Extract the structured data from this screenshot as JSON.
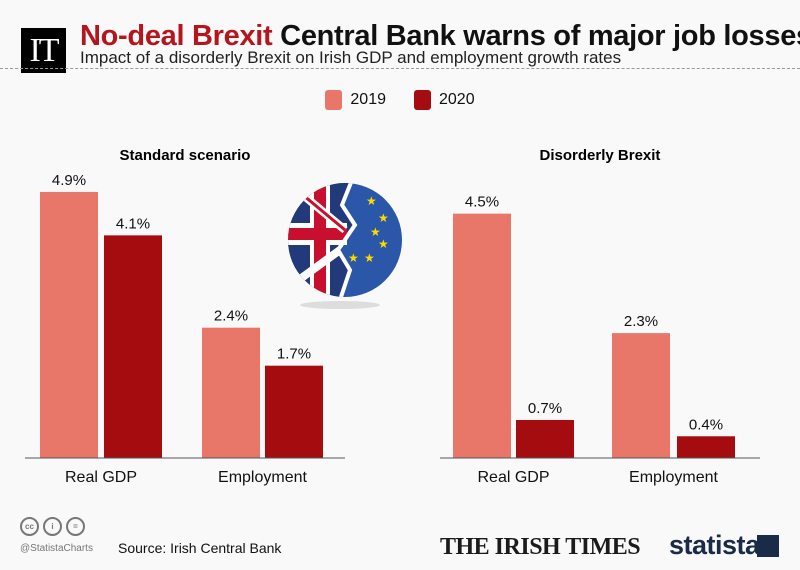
{
  "header": {
    "logo": "IT",
    "title_highlight": "No-deal Brexit",
    "title_rest": "Central Bank warns of major job losses",
    "subtitle": "Impact of a disorderly Brexit on Irish GDP and employment growth rates"
  },
  "colors": {
    "2019": "#e8776a",
    "2020": "#a50c10",
    "title_red": "#b3161c"
  },
  "legend": [
    "2019",
    "2020"
  ],
  "chart_data": [
    {
      "type": "bar",
      "title": "Standard scenario",
      "categories": [
        "Real GDP",
        "Employment"
      ],
      "series": [
        {
          "name": "2019",
          "values": [
            4.9,
            2.4
          ]
        },
        {
          "name": "2020",
          "values": [
            4.1,
            1.7
          ]
        }
      ],
      "data_labels": [
        [
          "4.9%",
          "2.4%"
        ],
        [
          "4.1%",
          "1.7%"
        ]
      ],
      "ylim": [
        0,
        4.9
      ],
      "grid": false,
      "legend_placement": "top"
    },
    {
      "type": "bar",
      "title": "Disorderly Brexit",
      "categories": [
        "Real GDP",
        "Employment"
      ],
      "series": [
        {
          "name": "2019",
          "values": [
            4.5,
            2.3
          ]
        },
        {
          "name": "2020",
          "values": [
            0.7,
            0.4
          ]
        }
      ],
      "data_labels": [
        [
          "4.5%",
          "2.3%"
        ],
        [
          "0.7%",
          "0.4%"
        ]
      ],
      "ylim": [
        0,
        4.9
      ],
      "grid": false,
      "legend_placement": "top"
    }
  ],
  "illustration": "uk-eu-broken-flag-icon",
  "footer": {
    "handle": "@StatistaCharts",
    "source": "Source: Irish Central Bank",
    "cc_icons": [
      "cc",
      "by",
      "nd"
    ],
    "partner": "THE IRISH TIMES",
    "brand": "statista"
  }
}
